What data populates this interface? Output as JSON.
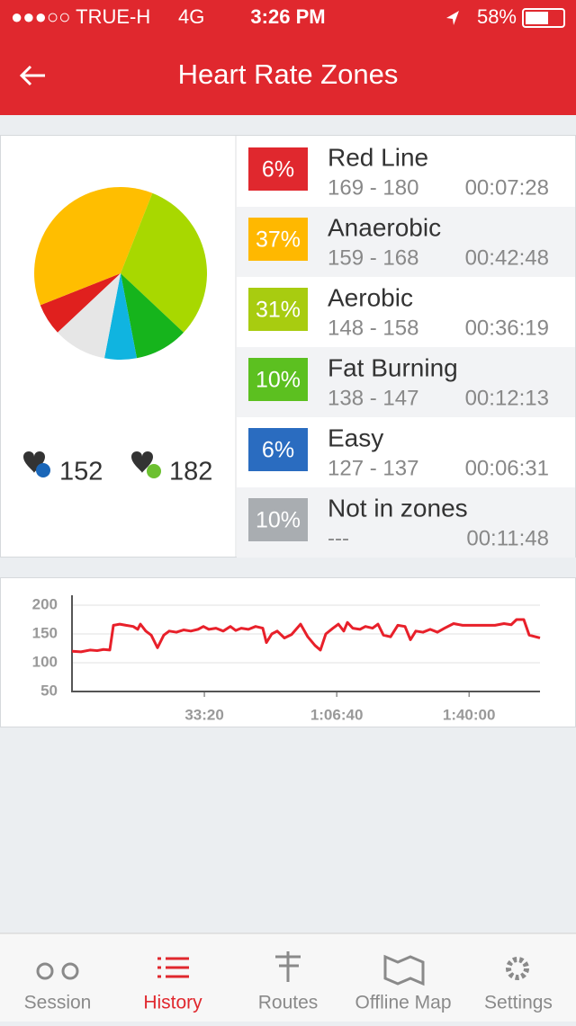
{
  "status_bar": {
    "carrier": "●●●○○ TRUE-H",
    "network": "4G",
    "time": "3:26 PM",
    "battery": "58%"
  },
  "header": {
    "title": "Heart Rate Zones"
  },
  "stats": {
    "average": "152",
    "maximum": "182"
  },
  "zones": [
    {
      "range": "169 - 180",
      "duration": "00:07:28",
      "color": "#e0282e"
    },
    {
      "range": "159 - 168",
      "duration": "00:42:48",
      "color": "#ffb800"
    },
    {
      "range": "148 - 158",
      "duration": "00:36:19",
      "color": "#a8cc10"
    },
    {
      "range": "138 - 147",
      "duration": "00:12:13",
      "color": "#5cc020"
    },
    {
      "range": "127 - 137",
      "duration": "00:06:31",
      "color": "#2a6cc0"
    },
    {
      "range": "---",
      "duration": "00:11:48",
      "color": "#a9adb1"
    }
  ],
  "chart_data": [
    {
      "type": "pie",
      "categories": [
        "Red Line",
        "Anaerobic",
        "Aerobic",
        "Fat Burning",
        "Easy",
        "Not in zones"
      ],
      "values": [
        6,
        37,
        31,
        10,
        6,
        10
      ],
      "value_labels": [
        "6%",
        "37%",
        "31%",
        "10%",
        "6%",
        "10%"
      ],
      "colors": [
        "#e0201e",
        "#ffbe00",
        "#a8d800",
        "#16b41c",
        "#10b4e0",
        "#e6e6e6"
      ]
    },
    {
      "type": "line",
      "color": "#e8202a",
      "grid": true,
      "ylim": [
        50,
        200
      ],
      "yticks": [
        50,
        100,
        150,
        200
      ],
      "xlim": [
        0,
        7072
      ],
      "xticks": [
        {
          "value": 2000,
          "label": "33:20"
        },
        {
          "value": 4000,
          "label": "1:06:40"
        },
        {
          "value": 6000,
          "label": "1:40:00"
        }
      ],
      "x": [
        0,
        136,
        272,
        381,
        476,
        571,
        626,
        721,
        816,
        925,
        993,
        1034,
        1115,
        1197,
        1292,
        1387,
        1469,
        1578,
        1686,
        1795,
        1904,
        1986,
        2067,
        2176,
        2285,
        2394,
        2475,
        2557,
        2666,
        2774,
        2883,
        2938,
        3019,
        3101,
        3210,
        3318,
        3454,
        3563,
        3672,
        3754,
        3835,
        3944,
        4026,
        4107,
        4162,
        4243,
        4352,
        4434,
        4542,
        4624,
        4706,
        4814,
        4923,
        5032,
        5114,
        5195,
        5304,
        5413,
        5522,
        5630,
        5766,
        5902,
        6120,
        6392,
        6528,
        6637,
        6718,
        6827,
        6909,
        7072
      ],
      "values": [
        120,
        119,
        122,
        121,
        123,
        122,
        165,
        167,
        165,
        163,
        158,
        167,
        155,
        148,
        126,
        148,
        155,
        153,
        157,
        155,
        158,
        163,
        158,
        160,
        155,
        163,
        156,
        160,
        158,
        163,
        160,
        135,
        150,
        155,
        143,
        149,
        167,
        145,
        130,
        122,
        150,
        160,
        167,
        155,
        170,
        160,
        158,
        163,
        160,
        167,
        148,
        145,
        165,
        163,
        140,
        155,
        153,
        158,
        153,
        160,
        168,
        165,
        165,
        165,
        168,
        166,
        175,
        175,
        148,
        143
      ]
    }
  ],
  "tab_bar": {
    "tabs": [
      "Session",
      "History",
      "Routes",
      "Offline Map",
      "Settings"
    ]
  }
}
